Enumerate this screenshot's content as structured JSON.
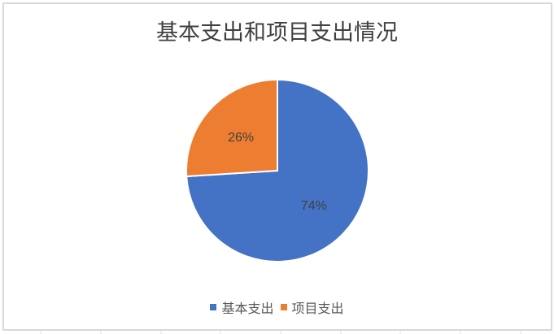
{
  "chart_data": {
    "type": "pie",
    "title": "基本支出和项目支出情况",
    "categories": [
      "基本支出",
      "项目支出"
    ],
    "values": [
      74,
      26
    ],
    "data_labels": [
      "74%",
      "26%"
    ],
    "colors": [
      "#4472c4",
      "#ed7d31"
    ],
    "legend_position": "bottom"
  }
}
